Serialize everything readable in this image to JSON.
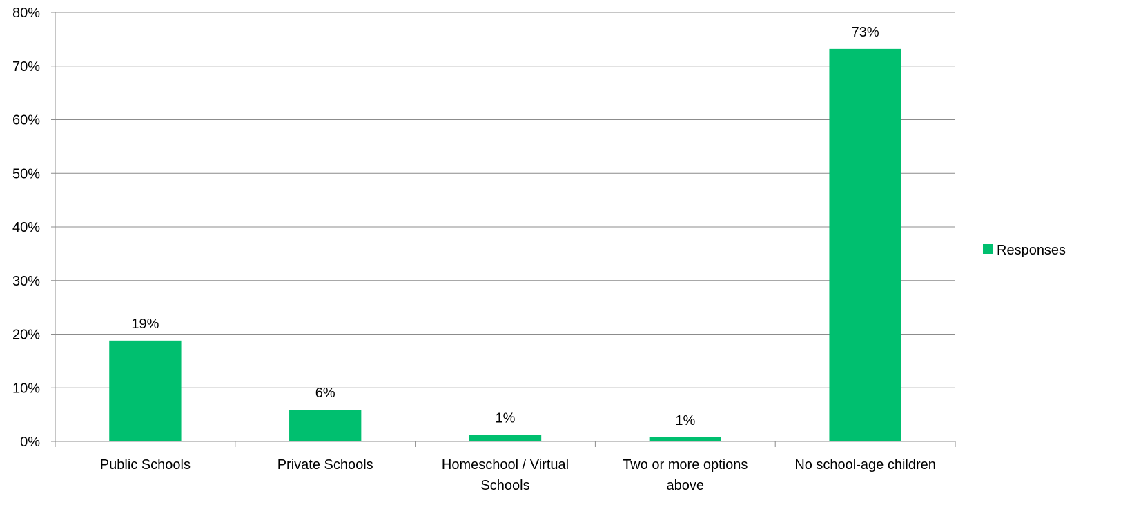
{
  "chart_data": {
    "type": "bar",
    "categories": [
      [
        "Public Schools"
      ],
      [
        "Private Schools"
      ],
      [
        "Homeschool / Virtual",
        "Schools"
      ],
      [
        "Two or more options",
        "above"
      ],
      [
        "No school-age children"
      ]
    ],
    "series": [
      {
        "name": "Responses",
        "values": [
          18.8,
          5.9,
          1.2,
          0.8,
          73.2
        ],
        "data_labels": [
          "19%",
          "6%",
          "1%",
          "1%",
          "73%"
        ],
        "color": "#00BF6F"
      }
    ],
    "ylim": [
      0,
      80
    ],
    "yticks": [
      "0%",
      "10%",
      "20%",
      "30%",
      "40%",
      "50%",
      "60%",
      "70%",
      "80%"
    ],
    "grid": true,
    "legend_position": "right"
  }
}
